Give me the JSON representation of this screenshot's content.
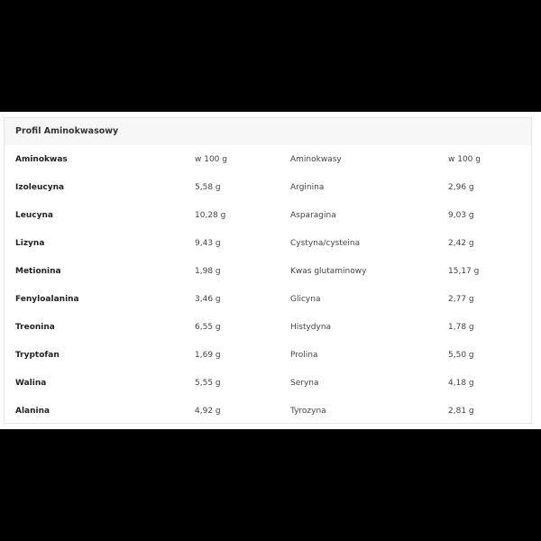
{
  "title": "Profil Aminokwasowy",
  "header": [
    "Aminokwas",
    "w 100 g",
    "Aminokwasy",
    "w 100 g"
  ],
  "rows": [
    [
      "Izoleucyna",
      "5,58 g",
      "Arginina",
      "2,96 g"
    ],
    [
      "Leucyna",
      "10,28 g",
      "Asparagina",
      "9,03 g"
    ],
    [
      "Lizyna",
      "9,43 g",
      "Cystyna/cysteina",
      "2,42 g"
    ],
    [
      "Metionina",
      "1,98 g",
      "Kwas glutaminowy",
      "15,17 g"
    ],
    [
      "Fenyloalanina",
      "3,46 g",
      "Glicyna",
      "2,77 g"
    ],
    [
      "Treonina",
      "6,55 g",
      "Histydyna",
      "1,78 g"
    ],
    [
      "Tryptofan",
      "1,69 g",
      "Prolina",
      "5,50 g"
    ],
    [
      "Walina",
      "5,55 g",
      "Seryna",
      "4,18 g"
    ],
    [
      "Alanina",
      "4,92 g",
      "Tyrozyna",
      "2,81 g"
    ]
  ]
}
